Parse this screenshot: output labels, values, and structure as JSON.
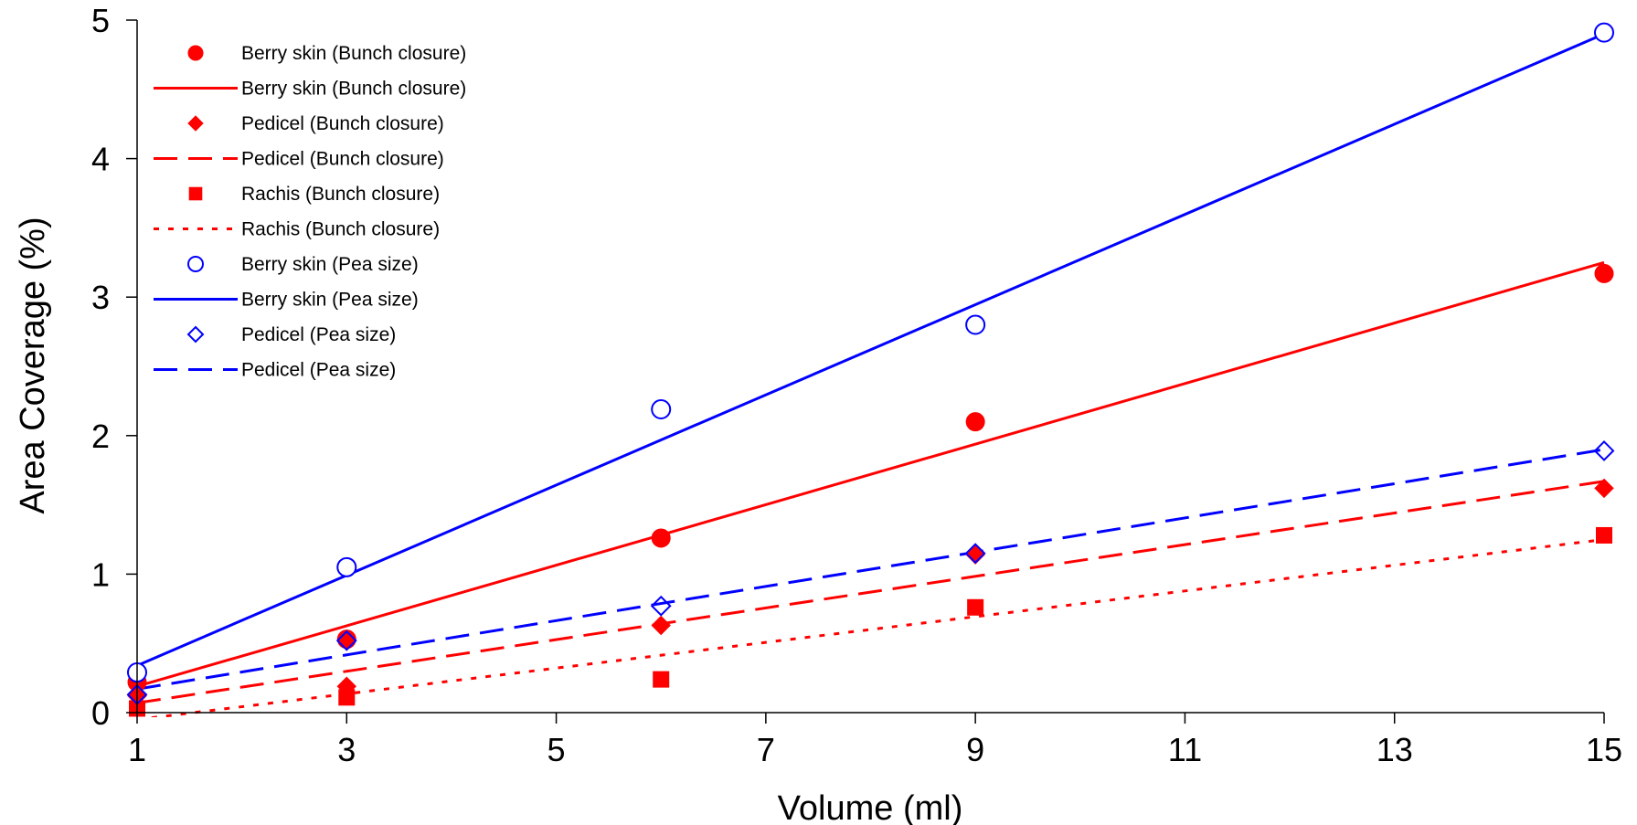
{
  "chart_data": {
    "type": "scatter",
    "title": "",
    "xlabel": "Volume (ml)",
    "ylabel": "Area Coverage (%)",
    "xlim": [
      1,
      15
    ],
    "ylim": [
      0,
      5
    ],
    "xticks": [
      1,
      3,
      5,
      7,
      9,
      11,
      13,
      15
    ],
    "yticks": [
      0,
      1,
      2,
      3,
      4,
      5
    ],
    "grid": false,
    "legend_position": "top-left",
    "series": [
      {
        "name": "Berry skin (Bunch closure)",
        "kind": "markers",
        "marker": "circle-filled",
        "color": "#ff0000",
        "x": [
          1,
          3,
          6,
          9,
          15
        ],
        "y": [
          0.22,
          0.53,
          1.26,
          2.1,
          3.17
        ]
      },
      {
        "name": "Berry skin (Bunch closure)",
        "kind": "line",
        "dash": "solid",
        "color": "#ff0000",
        "x": [
          1,
          15
        ],
        "y": [
          0.19,
          3.25
        ]
      },
      {
        "name": "Pedicel (Bunch closure)",
        "kind": "markers",
        "marker": "diamond-filled",
        "color": "#ff0000",
        "x": [
          1,
          3,
          6,
          9,
          15
        ],
        "y": [
          0.12,
          0.19,
          0.63,
          1.14,
          1.62
        ]
      },
      {
        "name": "Pedicel (Bunch closure)",
        "kind": "line",
        "dash": "long",
        "color": "#ff0000",
        "x": [
          1,
          15
        ],
        "y": [
          0.07,
          1.67
        ]
      },
      {
        "name": "Rachis (Bunch closure)",
        "kind": "markers",
        "marker": "square-filled",
        "color": "#ff0000",
        "x": [
          1,
          3,
          6,
          9,
          15
        ],
        "y": [
          0.03,
          0.11,
          0.24,
          0.76,
          1.28
        ]
      },
      {
        "name": "Rachis (Bunch closure)",
        "kind": "line",
        "dash": "dotted",
        "color": "#ff0000",
        "x": [
          1,
          15
        ],
        "y": [
          -0.05,
          1.25
        ]
      },
      {
        "name": "Berry skin (Pea size)",
        "kind": "markers",
        "marker": "circle-open",
        "color": "#0000ff",
        "x": [
          1,
          3,
          6,
          9,
          15
        ],
        "y": [
          0.29,
          1.05,
          2.19,
          2.8,
          4.91
        ]
      },
      {
        "name": "Berry skin (Pea size)",
        "kind": "line",
        "dash": "solid",
        "color": "#0000ff",
        "x": [
          1,
          15
        ],
        "y": [
          0.34,
          4.9
        ]
      },
      {
        "name": "Pedicel (Pea size)",
        "kind": "markers",
        "marker": "diamond-open",
        "color": "#0000ff",
        "x": [
          1,
          3,
          6,
          9,
          15
        ],
        "y": [
          0.13,
          0.52,
          0.77,
          1.15,
          1.89
        ]
      },
      {
        "name": "Pedicel (Pea size)",
        "kind": "line",
        "dash": "long",
        "color": "#0000ff",
        "x": [
          1,
          15
        ],
        "y": [
          0.17,
          1.9
        ]
      }
    ]
  }
}
